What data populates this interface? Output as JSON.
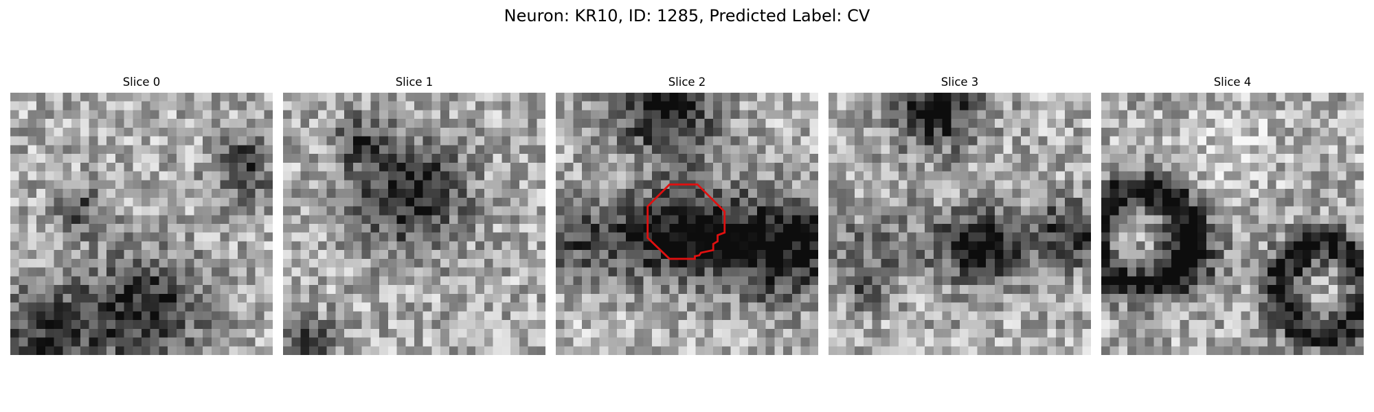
{
  "suptitle": "Neuron: KR10, ID: 1285, Predicted Label: CV",
  "panels": [
    {
      "title": "Slice 0"
    },
    {
      "title": "Slice 1"
    },
    {
      "title": "Slice 2",
      "has_contour": true
    },
    {
      "title": "Slice 3"
    },
    {
      "title": "Slice 4"
    }
  ],
  "colors": {
    "contour": "#e01010",
    "background": "#ffffff"
  }
}
